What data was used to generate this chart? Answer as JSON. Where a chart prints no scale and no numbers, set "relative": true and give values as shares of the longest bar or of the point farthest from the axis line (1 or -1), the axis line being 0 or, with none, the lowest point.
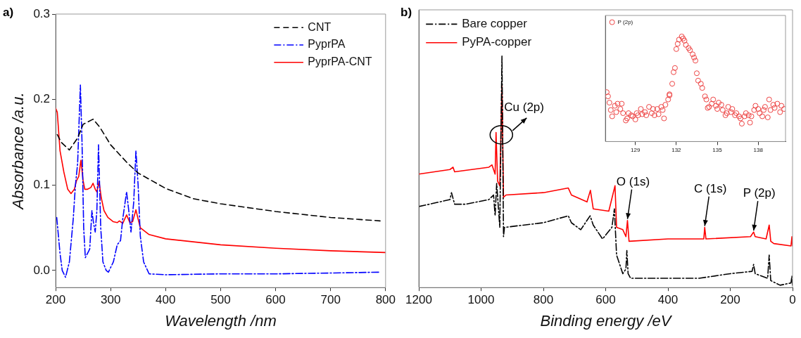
{
  "chart_data": [
    {
      "type": "line",
      "xlabel": "Wavelength /nm",
      "ylabel": "Absorbance /a.u.",
      "annotations": [
        "a)"
      ],
      "xlim": [
        200,
        800
      ],
      "xticks": [
        200,
        300,
        400,
        500,
        600,
        700,
        800
      ],
      "ylim": [
        -0.02,
        0.3
      ],
      "yticks": [
        {
          "value": 0,
          "label": "0.0"
        },
        0.1,
        0.2,
        0.3
      ],
      "legend": "top right",
      "series": [
        {
          "name": "CNT",
          "color": "#000000",
          "line_style": "dashed",
          "x": [
            203,
            210,
            225,
            240,
            250,
            268,
            280,
            300,
            330,
            350,
            400,
            450,
            500,
            600,
            700,
            790
          ],
          "values": [
            0.159,
            0.15,
            0.141,
            0.155,
            0.171,
            0.177,
            0.168,
            0.147,
            0.126,
            0.114,
            0.096,
            0.084,
            0.078,
            0.069,
            0.062,
            0.058
          ]
        },
        {
          "name": "PyprPA",
          "color": "#0000ff",
          "line_style": "dashdot",
          "x": [
            202,
            208,
            212,
            218,
            225,
            232,
            236,
            240,
            245,
            248,
            251,
            254,
            258,
            262,
            266,
            269,
            272,
            275,
            278,
            282,
            286,
            292,
            296,
            305,
            312,
            318,
            322,
            329,
            333,
            337,
            342,
            346,
            350,
            354,
            360,
            370,
            400,
            500,
            600,
            700,
            790
          ],
          "values": [
            0.062,
            0.02,
            0.0,
            -0.008,
            0.01,
            0.06,
            0.1,
            0.125,
            0.217,
            0.15,
            0.05,
            0.015,
            0.02,
            0.025,
            0.07,
            0.055,
            0.045,
            0.07,
            0.147,
            0.05,
            0.01,
            0.0,
            -0.002,
            0.01,
            0.03,
            0.035,
            0.06,
            0.092,
            0.07,
            0.045,
            0.08,
            0.14,
            0.1,
            0.04,
            0.01,
            -0.004,
            -0.005,
            -0.004,
            -0.004,
            -0.003,
            -0.002
          ]
        },
        {
          "name": "PyprPA-CNT",
          "color": "#ff0000",
          "line_style": "solid",
          "x": [
            200,
            203,
            208,
            215,
            222,
            228,
            234,
            238,
            242,
            246,
            250,
            253,
            258,
            264,
            268,
            272,
            275,
            279,
            283,
            288,
            295,
            305,
            312,
            316,
            322,
            329,
            335,
            340,
            346,
            350,
            354,
            370,
            400,
            500,
            600,
            700,
            800
          ],
          "values": [
            0.19,
            0.185,
            0.14,
            0.115,
            0.095,
            0.09,
            0.095,
            0.105,
            0.11,
            0.129,
            0.105,
            0.095,
            0.095,
            0.097,
            0.102,
            0.095,
            0.092,
            0.104,
            0.085,
            0.07,
            0.062,
            0.057,
            0.056,
            0.058,
            0.055,
            0.065,
            0.056,
            0.057,
            0.071,
            0.06,
            0.05,
            0.042,
            0.037,
            0.03,
            0.026,
            0.023,
            0.021
          ]
        }
      ]
    },
    {
      "type": "line",
      "relative": true,
      "xlabel": "Binding energy /eV",
      "annotations": [
        "b)",
        {
          "text": "Cu (2p)",
          "x": 935,
          "y": 0.66
        },
        {
          "text": "O (1s)",
          "x": 530,
          "y": 0.29
        },
        {
          "text": "C (1s)",
          "x": 282,
          "y": 0.26
        },
        {
          "text": "P (2p)",
          "x": 125,
          "y": 0.24
        }
      ],
      "xlim": [
        1200,
        0
      ],
      "xticks": [
        1200,
        1000,
        800,
        600,
        400,
        200,
        0
      ],
      "legend": "top left",
      "series": [
        {
          "name": "Bare copper",
          "color": "#000000",
          "line_style": "dashdot",
          "x": [
            1200,
            1100,
            1095,
            1085,
            1050,
            975,
            960,
            955,
            950,
            940,
            933,
            928,
            925,
            800,
            720,
            710,
            680,
            650,
            640,
            610,
            580,
            572,
            565,
            545,
            535,
            532,
            528,
            520,
            500,
            300,
            200,
            130,
            125,
            120,
            80,
            75,
            70,
            40,
            5,
            2,
            0
          ],
          "values": [
            0.35,
            0.38,
            0.41,
            0.36,
            0.36,
            0.38,
            0.4,
            0.31,
            0.45,
            0.26,
            1.0,
            0.22,
            0.26,
            0.28,
            0.31,
            0.28,
            0.25,
            0.31,
            0.27,
            0.21,
            0.26,
            0.34,
            0.14,
            0.06,
            0.08,
            0.16,
            0.06,
            0.04,
            0.04,
            0.04,
            0.06,
            0.07,
            0.1,
            0.06,
            0.04,
            0.14,
            0.03,
            0.01,
            0.02,
            0.05,
            0.01
          ]
        },
        {
          "name": "PyPA-copper",
          "color": "#ff0000",
          "line_style": "solid",
          "x": [
            1200,
            1100,
            1090,
            1085,
            975,
            965,
            955,
            952,
            947,
            940,
            933,
            928,
            920,
            800,
            720,
            710,
            660,
            649,
            640,
            590,
            570,
            565,
            545,
            535,
            530,
            525,
            400,
            285,
            282,
            278,
            135,
            125,
            120,
            85,
            75,
            70,
            60,
            5,
            2,
            0
          ],
          "values": [
            0.49,
            0.51,
            0.52,
            0.5,
            0.52,
            0.53,
            0.49,
            0.67,
            0.46,
            0.44,
            0.87,
            0.39,
            0.4,
            0.41,
            0.43,
            0.4,
            0.37,
            0.42,
            0.34,
            0.33,
            0.44,
            0.26,
            0.25,
            0.22,
            0.29,
            0.2,
            0.21,
            0.21,
            0.26,
            0.21,
            0.22,
            0.24,
            0.22,
            0.21,
            0.27,
            0.2,
            0.19,
            0.18,
            0.22,
            0.18
          ]
        }
      ]
    },
    {
      "type": "scatter",
      "relative": true,
      "xlim": [
        126.8,
        140
      ],
      "xticks": [
        129,
        132,
        135,
        138
      ],
      "legend": "top left",
      "marker": "circle",
      "series": [
        {
          "name": "P (2p)",
          "color": "#ee4444",
          "x": [
            126.9,
            127.0,
            127.1,
            127.2,
            127.3,
            127.5,
            127.6,
            127.7,
            127.9,
            128.0,
            128.1,
            128.3,
            128.4,
            128.5,
            128.7,
            128.8,
            129.0,
            129.1,
            129.2,
            129.4,
            129.5,
            129.7,
            129.8,
            130.0,
            130.2,
            130.3,
            130.4,
            130.6,
            130.7,
            130.9,
            131.0,
            131.1,
            131.2,
            131.4,
            131.5,
            131.5,
            131.7,
            131.8,
            131.9,
            132.0,
            132.1,
            132.2,
            132.4,
            132.5,
            132.6,
            132.7,
            132.9,
            133.0,
            133.2,
            133.3,
            133.4,
            133.5,
            133.6,
            133.8,
            133.9,
            134.1,
            134.2,
            134.3,
            134.4,
            134.6,
            134.7,
            134.9,
            135.0,
            135.1,
            135.3,
            135.4,
            135.6,
            135.7,
            135.8,
            136.0,
            136.1,
            136.3,
            136.4,
            136.6,
            136.7,
            136.8,
            137.0,
            137.1,
            137.3,
            137.4,
            137.5,
            137.7,
            137.8,
            138.0,
            138.1,
            138.3,
            138.4,
            138.5,
            138.7,
            138.8,
            138.9,
            139.1,
            139.2,
            139.4,
            139.6,
            139.7,
            139.9
          ],
          "values": [
            0.47,
            0.43,
            0.37,
            0.3,
            0.24,
            0.34,
            0.28,
            0.36,
            0.31,
            0.36,
            0.27,
            0.2,
            0.22,
            0.27,
            0.25,
            0.24,
            0.21,
            0.27,
            0.25,
            0.31,
            0.26,
            0.28,
            0.25,
            0.33,
            0.27,
            0.31,
            0.25,
            0.31,
            0.26,
            0.33,
            0.3,
            0.22,
            0.35,
            0.4,
            0.44,
            0.45,
            0.55,
            0.66,
            0.7,
            0.88,
            0.93,
            0.97,
            1.0,
            0.98,
            0.96,
            0.92,
            0.89,
            0.87,
            0.83,
            0.8,
            0.77,
            0.65,
            0.58,
            0.55,
            0.51,
            0.43,
            0.4,
            0.32,
            0.33,
            0.36,
            0.4,
            0.34,
            0.31,
            0.37,
            0.35,
            0.3,
            0.25,
            0.27,
            0.33,
            0.28,
            0.31,
            0.25,
            0.27,
            0.24,
            0.22,
            0.17,
            0.24,
            0.27,
            0.25,
            0.18,
            0.24,
            0.3,
            0.34,
            0.31,
            0.27,
            0.24,
            0.3,
            0.33,
            0.23,
            0.4,
            0.3,
            0.35,
            0.32,
            0.36,
            0.28,
            0.34,
            0.31
          ]
        }
      ]
    }
  ]
}
